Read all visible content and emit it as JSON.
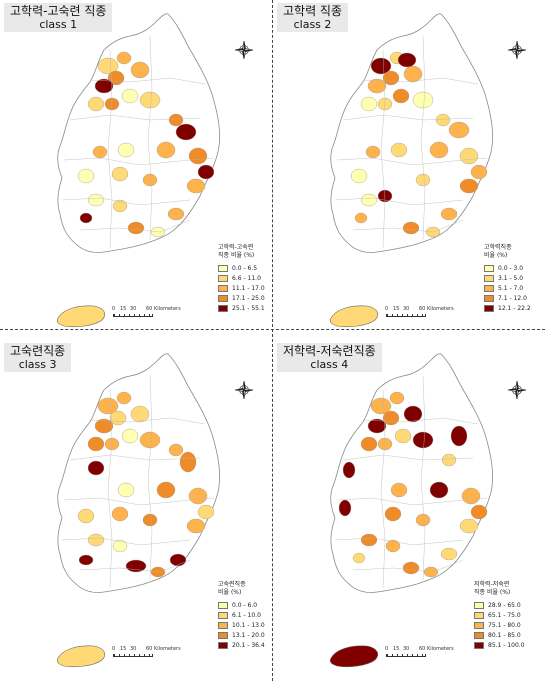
{
  "panels": [
    {
      "title_line1": "고학력-고숙련 직종",
      "title_line2": "class 1",
      "legend_title_line1": "고학력-고숙련",
      "legend_title_line2": "직종 비율 (%)",
      "legend": [
        "0.0 - 6.5",
        "6.6 - 11.0",
        "11.1 - 17.0",
        "17.1 - 25.0",
        "25.1 - 55.1"
      ],
      "scale_ticks": [
        "0",
        "15",
        "30",
        "60 Kilometers"
      ]
    },
    {
      "title_line1": "고학력 직종",
      "title_line2": "class 2",
      "legend_title_line1": "고학력직종",
      "legend_title_line2": "비율 (%)",
      "legend": [
        "0.0 - 3.0",
        "3.1 - 5.0",
        "5.1 - 7.0",
        "7.1 - 12.0",
        "12.1 - 22.2"
      ],
      "scale_ticks": [
        "0",
        "15",
        "30",
        "60 Kilometers"
      ]
    },
    {
      "title_line1": "고숙련직종",
      "title_line2": "class 3",
      "legend_title_line1": "고숙련직종",
      "legend_title_line2": "비율 (%)",
      "legend": [
        "0.0 - 6.0",
        "6.1 - 10.0",
        "10.1 - 13.0",
        "13.1 - 20.0",
        "20.1 - 36.4"
      ],
      "scale_ticks": [
        "0",
        "15",
        "30",
        "60 Kilometers"
      ]
    },
    {
      "title_line1": "저학력-저숙련직종",
      "title_line2": "class 4",
      "legend_title_line1": "저학력-저숙련",
      "legend_title_line2": "직종 비율 (%)",
      "legend": [
        "28.9 - 65.0",
        "65.1 - 75.0",
        "75.1 - 80.0",
        "80.1 - 85.0",
        "85.1 - 100.0"
      ],
      "scale_ticks": [
        "0",
        "15",
        "30",
        "60 Kilometers"
      ]
    }
  ],
  "legend_colors": [
    "#ffffb2",
    "#fed976",
    "#feb24c",
    "#f08c28",
    "#800000"
  ],
  "icons": [
    "compass-rose-icon"
  ]
}
